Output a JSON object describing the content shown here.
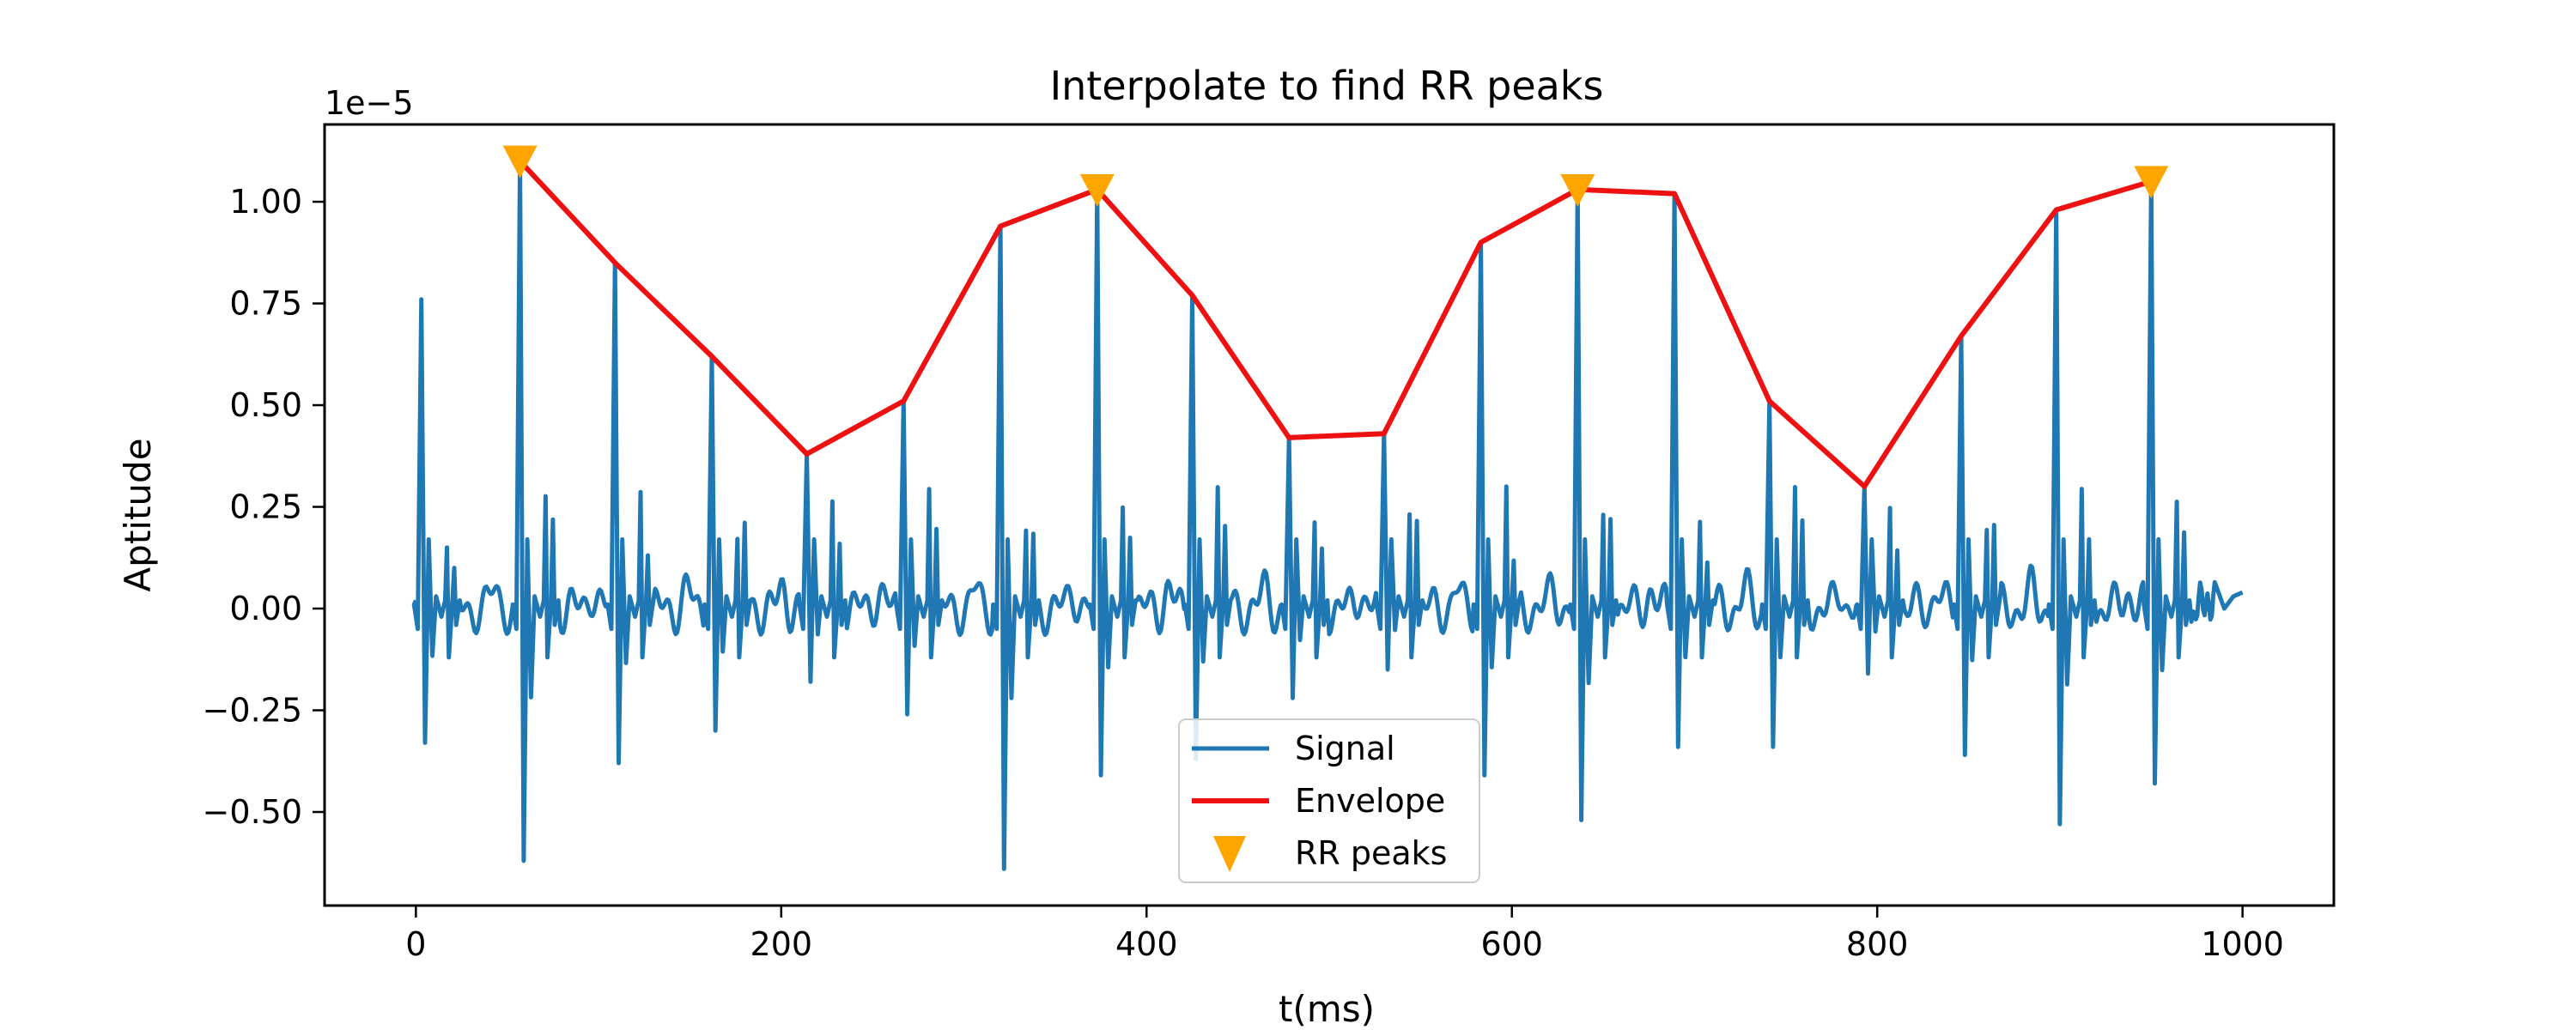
{
  "chart_data": {
    "type": "line",
    "title": "Interpolate to find RR peaks",
    "xlabel": "t(ms)",
    "ylabel": "Aptitude",
    "y_offset_label": "1e−5",
    "xlim": [
      -50,
      1050
    ],
    "ylim": [
      -0.73,
      1.19
    ],
    "y_scale_note": "values are in units of 1e-5",
    "xticks": [
      0,
      200,
      400,
      600,
      800,
      1000
    ],
    "xtick_labels": [
      "0",
      "200",
      "400",
      "600",
      "800",
      "1000"
    ],
    "yticks": [
      -0.5,
      -0.25,
      0.0,
      0.25,
      0.5,
      0.75,
      1.0
    ],
    "ytick_labels": [
      "−0.50",
      "−0.25",
      "0.00",
      "0.25",
      "0.50",
      "0.75",
      "1.00"
    ],
    "grid": false,
    "legend_position": "bottom-center",
    "colors": {
      "signal": "#1f77b4",
      "envelope": "#ee1111",
      "peaks": "#ffa500"
    },
    "series": [
      {
        "name": "Signal",
        "kind": "line",
        "beat_peak_x": [
          3,
          57,
          109,
          162,
          214,
          267,
          320,
          373,
          425,
          478,
          530,
          583,
          636,
          689,
          741,
          793,
          846,
          898,
          950
        ],
        "beat_peak_y": [
          0.76,
          1.1,
          0.85,
          0.62,
          0.38,
          0.51,
          0.94,
          1.03,
          0.77,
          0.42,
          0.43,
          0.9,
          1.03,
          1.02,
          0.51,
          0.3,
          0.67,
          0.98,
          1.05
        ],
        "beat_trough_y": [
          -0.33,
          -0.62,
          -0.38,
          -0.3,
          -0.18,
          -0.26,
          -0.64,
          -0.41,
          -0.37,
          -0.22,
          -0.15,
          -0.41,
          -0.52,
          -0.34,
          -0.34,
          -0.16,
          -0.36,
          -0.53,
          -0.43
        ],
        "x_end": 1000,
        "y_end": 0.04
      },
      {
        "name": "Envelope",
        "kind": "line",
        "x": [
          57,
          109,
          162,
          214,
          267,
          320,
          373,
          425,
          478,
          530,
          583,
          636,
          689,
          741,
          793,
          846,
          898,
          950
        ],
        "y": [
          1.1,
          0.85,
          0.62,
          0.38,
          0.51,
          0.94,
          1.03,
          0.77,
          0.42,
          0.43,
          0.9,
          1.03,
          1.02,
          0.51,
          0.3,
          0.67,
          0.98,
          1.05
        ]
      },
      {
        "name": "RR peaks",
        "kind": "scatter",
        "x": [
          57,
          373,
          636,
          950
        ],
        "y": [
          1.1,
          1.03,
          1.03,
          1.05
        ]
      }
    ]
  }
}
